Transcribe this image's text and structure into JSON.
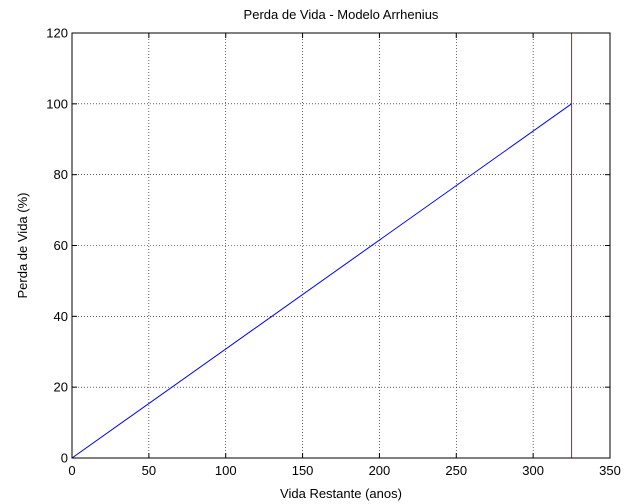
{
  "chart_data": {
    "type": "line",
    "title": "Perda de Vida - Modelo Arrhenius",
    "xlabel": "Vida Restante (anos)",
    "ylabel": "Perda de Vida (%)",
    "xlim": [
      0,
      350
    ],
    "ylim": [
      0,
      120
    ],
    "xticks": [
      0,
      50,
      100,
      150,
      200,
      250,
      300,
      350
    ],
    "yticks": [
      0,
      20,
      40,
      60,
      80,
      100,
      120
    ],
    "grid": true,
    "series": [
      {
        "color": "#0000ff",
        "x": [
          0,
          325
        ],
        "y": [
          0,
          100
        ]
      }
    ],
    "vlines": [
      {
        "x": 325,
        "color": "#ff0000"
      }
    ]
  }
}
